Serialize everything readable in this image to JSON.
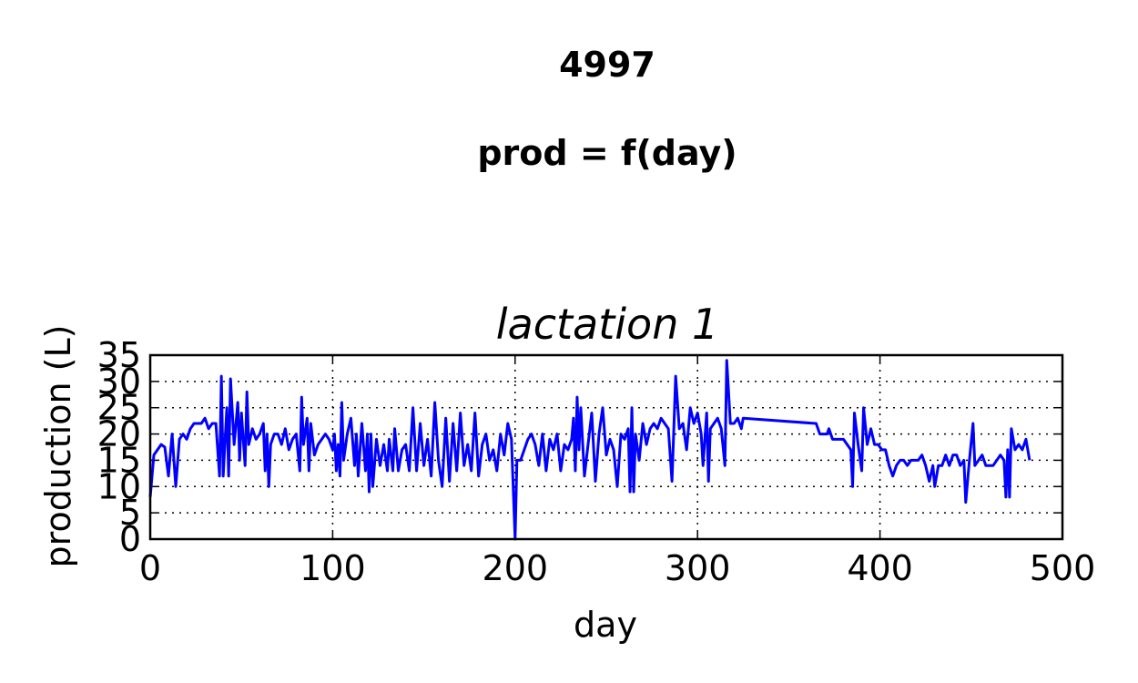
{
  "chart_data": {
    "type": "line",
    "title": "4997",
    "subtitle": "prod = f(day)",
    "panel_title": "lactation 1",
    "x_label": "day",
    "y_label": "production (L)",
    "xlim": [
      0,
      500
    ],
    "xticks": [
      0,
      100,
      200,
      300,
      400,
      500
    ],
    "ylim": [
      0,
      35
    ],
    "yticks": [
      0,
      5,
      10,
      15,
      20,
      25,
      30,
      35
    ],
    "grid": true,
    "series": [
      {
        "color": "#0000ff",
        "x": [
          0,
          2,
          4,
          6,
          8,
          10,
          12,
          14,
          16,
          18,
          20,
          22,
          24,
          26,
          28,
          30,
          32,
          34,
          36,
          38,
          39,
          40,
          42,
          43,
          44,
          46,
          48,
          49,
          50,
          52,
          53,
          54,
          56,
          58,
          60,
          62,
          63,
          64,
          65,
          66,
          68,
          70,
          72,
          74,
          76,
          78,
          80,
          82,
          83,
          84,
          86,
          87,
          88,
          90,
          92,
          94,
          96,
          98,
          100,
          101,
          102,
          103,
          104,
          105,
          106,
          108,
          110,
          112,
          113,
          114,
          116,
          118,
          119,
          120,
          121,
          122,
          124,
          126,
          128,
          130,
          131,
          133,
          134,
          136,
          138,
          140,
          142,
          144,
          146,
          148,
          150,
          152,
          154,
          156,
          158,
          160,
          162,
          164,
          166,
          168,
          170,
          172,
          174,
          176,
          178,
          180,
          182,
          184,
          186,
          188,
          190,
          192,
          194,
          196,
          198,
          200,
          201,
          203,
          205,
          207,
          209,
          211,
          213,
          215,
          217,
          219,
          221,
          223,
          225,
          227,
          229,
          231,
          232,
          233,
          234,
          235,
          236,
          238,
          240,
          242,
          244,
          246,
          248,
          250,
          252,
          254,
          256,
          258,
          260,
          262,
          263,
          264,
          265,
          266,
          268,
          270,
          272,
          274,
          276,
          278,
          280,
          282,
          284,
          286,
          288,
          290,
          292,
          294,
          296,
          298,
          300,
          302,
          303,
          305,
          306,
          307,
          309,
          311,
          313,
          315,
          316,
          318,
          320,
          322,
          324,
          325,
          365,
          367,
          369,
          371,
          372,
          374,
          376,
          378,
          380,
          382,
          384,
          385,
          386,
          388,
          390,
          391,
          393,
          395,
          397,
          399,
          401,
          403,
          405,
          407,
          409,
          411,
          413,
          415,
          417,
          419,
          421,
          423,
          425,
          427,
          429,
          430,
          432,
          434,
          436,
          438,
          440,
          442,
          444,
          446,
          447,
          449,
          451,
          452,
          454,
          456,
          458,
          460,
          462,
          464,
          466,
          468,
          469,
          470,
          471,
          472,
          474,
          476,
          478,
          480,
          482
        ],
        "values": [
          8,
          16,
          17,
          18,
          17.5,
          12,
          20,
          10,
          19,
          20,
          19,
          21,
          22,
          22,
          22,
          23,
          21,
          22,
          22,
          12,
          31,
          12,
          25,
          12,
          30.5,
          18,
          26,
          15,
          24,
          14,
          28,
          18,
          21,
          19,
          20,
          22,
          13,
          20,
          10,
          18,
          20,
          20,
          18,
          21,
          17,
          19,
          20,
          13,
          27,
          18,
          23,
          13,
          22,
          16,
          18,
          19,
          20,
          19,
          17,
          20,
          13,
          18,
          12,
          26,
          15,
          20,
          23,
          14,
          20,
          12,
          22,
          13,
          20,
          9,
          20,
          10,
          19,
          14,
          18,
          13,
          19,
          13,
          21,
          13,
          17,
          18,
          13,
          25,
          13,
          22,
          14,
          19,
          12,
          26,
          15,
          10,
          23,
          11,
          22,
          13,
          24,
          14,
          18,
          13,
          24,
          12,
          18,
          20,
          15,
          17,
          13,
          20,
          16,
          22,
          19,
          0,
          15,
          15,
          17,
          19,
          20,
          18,
          14,
          20,
          13,
          19,
          17,
          20,
          13,
          18,
          17,
          19,
          23,
          13,
          27,
          17,
          25,
          12,
          18,
          24,
          11,
          20,
          25,
          16,
          19,
          17,
          10,
          20,
          19,
          21,
          9,
          25,
          9,
          20,
          15,
          22,
          18,
          21,
          22,
          21,
          23,
          22,
          21,
          11,
          31,
          21,
          22,
          17,
          25,
          22,
          24,
          20,
          14,
          24,
          11,
          21,
          22,
          23,
          21,
          14,
          34,
          22,
          22,
          23,
          21,
          23,
          22,
          20,
          20,
          20,
          21,
          19,
          19,
          19,
          19,
          18,
          17,
          10,
          24,
          18,
          13,
          25,
          18,
          21,
          18,
          18,
          17,
          17,
          14,
          12,
          14,
          15,
          15,
          14,
          15,
          15,
          15,
          16,
          14,
          11,
          14,
          10,
          14,
          14,
          16,
          14,
          16,
          16,
          14,
          15,
          7,
          15,
          22,
          14,
          15,
          16,
          14,
          14,
          14,
          15,
          16,
          15,
          8,
          17,
          8,
          21,
          17,
          18,
          17,
          19,
          15
        ]
      }
    ]
  }
}
